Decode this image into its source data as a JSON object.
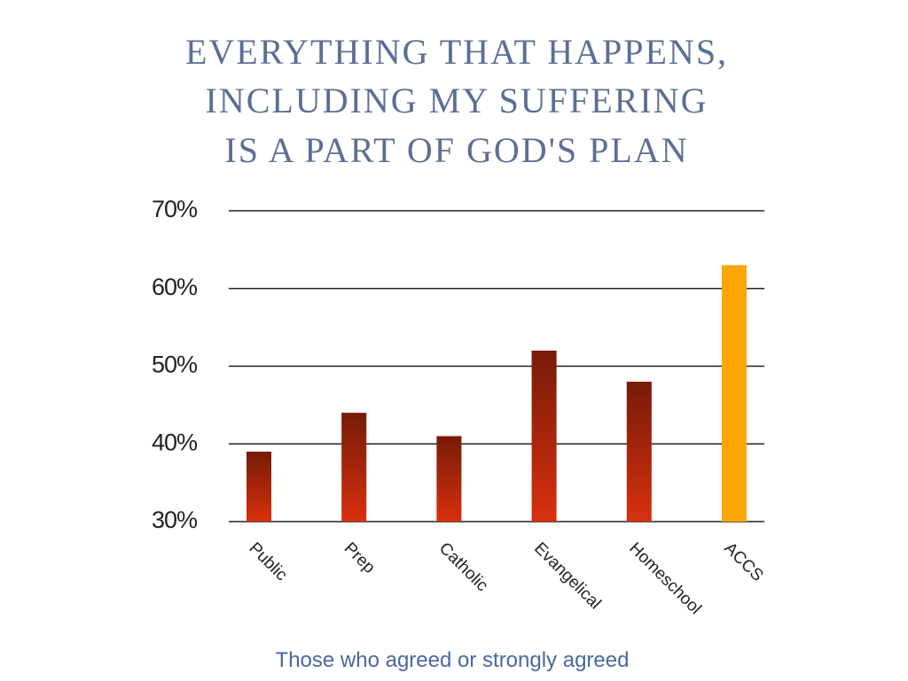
{
  "chart_data": {
    "type": "bar",
    "title": [
      "EVERYTHING THAT HAPPENS,",
      "INCLUDING MY SUFFERING",
      "IS A PART OF GOD'S PLAN"
    ],
    "categories": [
      "Public",
      "Prep",
      "Catholic",
      "Evangelical",
      "Homeschool",
      "ACCS"
    ],
    "values": [
      39,
      44,
      41,
      52,
      48,
      63
    ],
    "colors": [
      "#d8300e",
      "#d8300e",
      "#d8300e",
      "#d8300e",
      "#d8300e",
      "#f9a602"
    ],
    "ylim": [
      30,
      70
    ],
    "yticks": [
      {
        "value": 30,
        "label": "30%"
      },
      {
        "value": 40,
        "label": "40%"
      },
      {
        "value": 50,
        "label": "50%"
      },
      {
        "value": 60,
        "label": "60%"
      },
      {
        "value": 70,
        "label": "70%"
      }
    ],
    "grid": true,
    "caption": "Those who agreed or strongly agreed"
  }
}
